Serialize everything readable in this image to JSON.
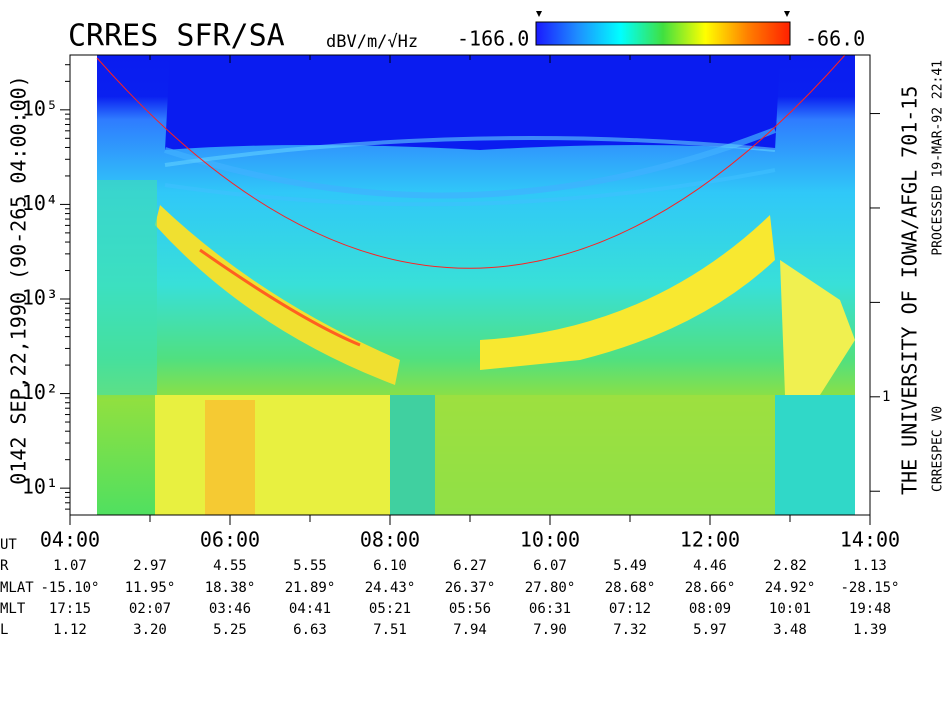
{
  "chart_data": {
    "type": "spectrogram",
    "title": "CRRES SFR/SA",
    "colorbar": {
      "label": "dBV/m/√Hz",
      "min": {
        "value": -166,
        "label": "-166.0"
      },
      "max": {
        "value": -66,
        "label": "-66.0"
      },
      "colors": [
        "#1a1aff",
        "#1e90ff",
        "#00ffff",
        "#40e040",
        "#ffff00",
        "#ff8000",
        "#ff2000"
      ]
    },
    "y_label": "0142 SEP,22,1990 (90-265 04:00:00)",
    "log_y": true,
    "ylim": [
      5.2,
      380000
    ],
    "yticks": [
      {
        "value": 10,
        "label": "10¹"
      },
      {
        "value": 100,
        "label": "10²"
      },
      {
        "value": 1000,
        "label": "10³"
      },
      {
        "value": 10000,
        "label": "10⁴"
      },
      {
        "value": 100000,
        "label": "10⁵"
      }
    ],
    "y2lim": [
      0.056,
      4170
    ],
    "y2ticks": [
      {
        "value": 1,
        "label": "1"
      }
    ],
    "y2minor": [
      0.1,
      10,
      100,
      1000
    ],
    "xlim": [
      4,
      14
    ],
    "xticks": [
      {
        "value": 4,
        "label": "04:00"
      },
      {
        "value": 6,
        "label": "06:00"
      },
      {
        "value": 8,
        "label": "08:00"
      },
      {
        "value": 10,
        "label": "10:00"
      },
      {
        "value": 12,
        "label": "12:00"
      },
      {
        "value": 14,
        "label": "14:00"
      }
    ],
    "xminor": [
      5,
      7,
      9,
      11,
      13
    ],
    "x_label": "UT",
    "right_labels": [
      "THE UNIVERSITY OF IOWA/AFGL 701-15",
      "PROCESSED 19-MAR-92 22:41",
      "CRRESPEC V0"
    ],
    "ephemeris": [
      {
        "name": "R",
        "values": [
          "1.07",
          "2.97",
          "4.55",
          "5.55",
          "6.10",
          "6.27",
          "6.07",
          "5.49",
          "4.46",
          "2.82",
          "1.13"
        ]
      },
      {
        "name": "MLAT",
        "values": [
          "-15.10°",
          "11.95°",
          "18.38°",
          "21.89°",
          "24.43°",
          "26.37°",
          "27.80°",
          "28.68°",
          "28.66°",
          "24.92°",
          "-28.15°"
        ]
      },
      {
        "name": "MLT",
        "values": [
          "17:15",
          "02:07",
          "03:46",
          "04:41",
          "05:21",
          "05:56",
          "06:31",
          "07:12",
          "08:09",
          "10:01",
          "19:48"
        ]
      },
      {
        "name": "L",
        "values": [
          "1.12",
          "3.20",
          "5.25",
          "6.63",
          "7.51",
          "7.94",
          "7.90",
          "7.32",
          "5.97",
          "3.48",
          "1.39"
        ]
      }
    ]
  }
}
